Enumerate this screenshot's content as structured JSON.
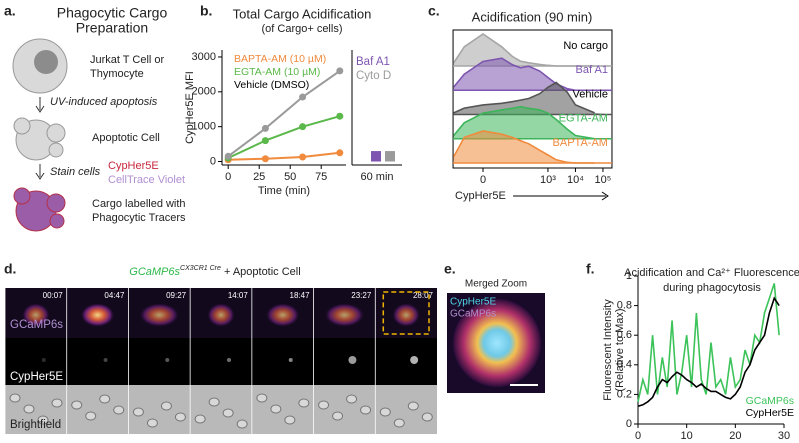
{
  "panel_labels": [
    "a.",
    "b.",
    "c.",
    "d.",
    "e.",
    "f."
  ],
  "scheme": {
    "title_lines": [
      "Phagocytic Cargo",
      "Preparation"
    ],
    "cell_lines": [
      "Jurkat T Cell or",
      "Thymocyte"
    ],
    "step1": "UV-induced apoptosis",
    "apoptotic": "Apoptotic Cell",
    "step2": "Stain cells",
    "stains": [
      "CypHer5E",
      "CellTrace Violet"
    ],
    "cargo_lines": [
      "Cargo labelled with",
      "Phagocytic Tracers"
    ]
  },
  "chart_data": [
    {
      "type": "line",
      "title": "Total Cargo Acidification",
      "subtitle": "(of Cargo+ cells)",
      "x_label": "Time (min)",
      "y_label": "CypHer5E MFI",
      "x": [
        0,
        30,
        60,
        90
      ],
      "xlim": [
        -5,
        95
      ],
      "xticks": [
        0,
        25,
        50,
        75
      ],
      "ylim": [
        -100,
        3200
      ],
      "yticks": [
        0,
        1000,
        2000,
        3000
      ],
      "markers": true,
      "legend": "upper left",
      "series": [
        {
          "name": "BAPTA-AM (10 µM)",
          "color": "#f08a3c",
          "values": [
            50,
            80,
            130,
            250
          ]
        },
        {
          "name": "EGTA-AM (10 µM)",
          "color": "#5bb84a",
          "values": [
            100,
            600,
            1000,
            1300
          ]
        },
        {
          "name": "Vehicle (DMSO)",
          "color": "#9a9a9a",
          "text_color": "#000000",
          "values": [
            150,
            950,
            1850,
            2600
          ]
        }
      ],
      "inset": {
        "category": "60 min",
        "series": [
          {
            "name": "Baf A1",
            "color": "#7d55b0",
            "values": [
              300
            ]
          },
          {
            "name": "Cyto D",
            "color": "#9a9a9a",
            "values": [
              300
            ]
          }
        ]
      }
    },
    {
      "type": "ridgeline",
      "title": "Acidification (90 min)",
      "x_label": "CypHer5E",
      "x": [
        -50,
        -20,
        0,
        20,
        50,
        100,
        200,
        500,
        1000,
        2000,
        5000,
        10000,
        50000
      ],
      "xlim": [
        -53,
        213000
      ],
      "xticks": [
        0,
        {
          "value": 1000,
          "label": "10³"
        },
        {
          "value": 10000,
          "label": "10⁴"
        },
        {
          "value": 100000,
          "label": "10⁵"
        }
      ],
      "series": [
        {
          "name": "No cargo",
          "color": "#a6a6a6",
          "values": [
            0.1,
            0.6,
            1,
            0.6,
            0.3,
            0.15,
            0.1,
            0.05,
            0.02,
            0,
            0,
            0,
            0
          ]
        },
        {
          "name": "Baf A1",
          "color": "#7d55b0",
          "values": [
            0.1,
            0.5,
            0.9,
            1,
            0.8,
            0.7,
            0.75,
            0.6,
            0.4,
            0.2,
            0.05,
            0,
            0
          ]
        },
        {
          "name": "Vehicle",
          "color": "#555555",
          "values": [
            0.05,
            0.2,
            0.3,
            0.35,
            0.4,
            0.45,
            0.5,
            0.65,
            0.85,
            1,
            0.7,
            0.3,
            0.05
          ]
        },
        {
          "name": "EGTA-AM",
          "color": "#3cb55a",
          "values": [
            0.1,
            0.5,
            0.8,
            0.9,
            0.95,
            1,
            0.95,
            0.9,
            0.8,
            0.6,
            0.3,
            0.1,
            0
          ]
        },
        {
          "name": "BAPTA-AM",
          "color": "#f08a3c",
          "values": [
            0.2,
            0.8,
            1,
            0.9,
            0.8,
            0.7,
            0.6,
            0.4,
            0.25,
            0.1,
            0.02,
            0,
            0
          ]
        }
      ]
    },
    {
      "type": "line",
      "title_lines": [
        "Acidification and Ca²⁺ Fluorescence",
        "during phagocytosis"
      ],
      "x_label": "Time (min)",
      "y_label_lines": [
        "Fluorescent Intensity",
        "(Relative to Max)"
      ],
      "x": [
        0,
        1,
        2,
        3,
        4,
        5,
        6,
        7,
        8,
        9,
        10,
        11,
        12,
        13,
        14,
        15,
        16,
        17,
        18,
        19,
        20,
        21,
        22,
        23,
        24,
        25,
        26,
        27,
        28,
        29
      ],
      "xlim": [
        0,
        30
      ],
      "xticks": [
        0,
        10,
        20,
        30
      ],
      "ylim": [
        0,
        1
      ],
      "yticks": [
        0,
        0.2,
        0.4,
        0.6,
        0.8,
        1
      ],
      "legend": "lower right",
      "series": [
        {
          "name": "GCaMP6s",
          "color": "#3cc35a",
          "values": [
            0.15,
            0.3,
            0.2,
            0.6,
            0.2,
            0.45,
            0.25,
            0.7,
            0.2,
            0.35,
            0.6,
            0.25,
            0.75,
            0.3,
            0.2,
            0.55,
            0.25,
            0.3,
            0.2,
            0.45,
            0.25,
            0.3,
            0.5,
            0.4,
            0.6,
            0.55,
            0.75,
            0.85,
            0.95,
            0.6
          ]
        },
        {
          "name": "CypHer5E",
          "color": "#000000",
          "values": [
            0.12,
            0.13,
            0.15,
            0.18,
            0.25,
            0.3,
            0.28,
            0.32,
            0.35,
            0.33,
            0.3,
            0.28,
            0.25,
            0.27,
            0.24,
            0.22,
            0.22,
            0.2,
            0.18,
            0.17,
            0.2,
            0.25,
            0.35,
            0.4,
            0.5,
            0.55,
            0.6,
            0.75,
            0.85,
            0.8
          ]
        }
      ]
    }
  ],
  "imaging": {
    "title_parts": [
      "GCaMP6s",
      "CX3CR1 Cre",
      " + Apoptotic Cell"
    ],
    "timestamps": [
      "00:07",
      "04:47",
      "09:27",
      "14:07",
      "18:47",
      "23:27",
      "28:07"
    ],
    "rows": [
      "GCaMP6s",
      "CypHer5E",
      "Brightfield"
    ]
  },
  "zoom": {
    "title": "Merged Zoom",
    "channels": [
      "CypHer5E",
      "GCaMP6s"
    ]
  }
}
